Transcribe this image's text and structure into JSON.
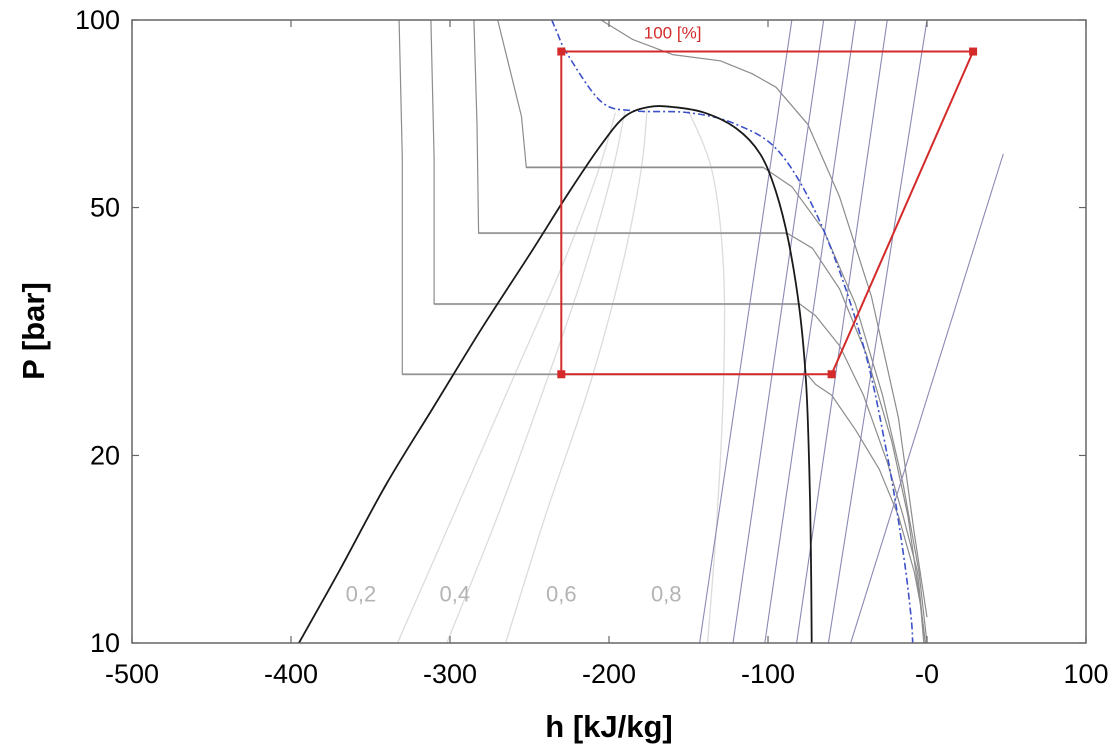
{
  "chart_data": {
    "type": "line",
    "title": "",
    "xlabel": "h [kJ/kg]",
    "ylabel": "P [bar]",
    "xlim": [
      -500,
      100
    ],
    "ylim": [
      10,
      100
    ],
    "yscale": "log",
    "grid": false,
    "x_ticks": [
      -500,
      -400,
      -300,
      -200,
      -100,
      0,
      100
    ],
    "x_tick_labels": [
      "-500",
      "-400",
      "-300",
      "-200",
      "-100",
      "-0",
      "100"
    ],
    "y_ticks": [
      10,
      20,
      50,
      100
    ],
    "y_tick_labels": [
      "10",
      "20",
      "50",
      "100"
    ],
    "colors": {
      "saturation_dome": "#1a1a1a",
      "isotherm": "#8c8c8c",
      "isobar": "#c8c8c8",
      "quality_line": "#dcdcdc",
      "isentrope": "#8a8ab4",
      "critical_isentrope": "#3c50c8",
      "cycle": "#d42a2a"
    },
    "saturation_dome": {
      "h": [
        -395,
        -370,
        -340,
        -310,
        -280,
        -250,
        -225,
        -205,
        -190,
        -175,
        -160,
        -140,
        -120,
        -105,
        -95,
        -87,
        -80,
        -76,
        -74,
        -73,
        -72.5
      ],
      "p": [
        10,
        13,
        18,
        24,
        32,
        42,
        53,
        63,
        70,
        72.5,
        72.5,
        71,
        67,
        61,
        53,
        44,
        34,
        26,
        19,
        14,
        10
      ]
    },
    "quality_lines": [
      {
        "label": "0,2",
        "h": [
          -333,
          -298,
          -262,
          -230,
          -207,
          -196
        ],
        "p": [
          10,
          16,
          26,
          40,
          57,
          71
        ]
      },
      {
        "label": "0,4",
        "h": [
          -302,
          -270,
          -240,
          -215,
          -198,
          -190
        ],
        "p": [
          10,
          16,
          26,
          40,
          57,
          71.5
        ]
      },
      {
        "label": "0,6",
        "h": [
          -265,
          -240,
          -212,
          -192,
          -180,
          -176
        ],
        "p": [
          10,
          16,
          26,
          40,
          57,
          72
        ]
      },
      {
        "label": "0,8",
        "h": [
          -138,
          -132,
          -128,
          -128,
          -135,
          -150
        ],
        "p": [
          10,
          16,
          26,
          40,
          57,
          71.5
        ]
      }
    ],
    "quality_label_y": 12,
    "isobars": [
      {
        "p": 27,
        "h": [
          -330,
          -75.5
        ]
      },
      {
        "p": 35,
        "h": [
          -310,
          -80
        ]
      },
      {
        "p": 45.5,
        "h": [
          -282,
          -88
        ]
      },
      {
        "p": 58,
        "h": [
          -252,
          -103
        ]
      }
    ],
    "isotherms": [
      {
        "h": [
          -332,
          -330,
          -330,
          -75.5,
          -70,
          -60,
          -45,
          -30,
          -18,
          -8,
          -4,
          -2
        ],
        "p": [
          100,
          60,
          27,
          27,
          26,
          25,
          22,
          19,
          16,
          13,
          11.5,
          10
        ]
      },
      {
        "h": [
          -312,
          -310,
          -310,
          -80,
          -70,
          -55,
          -40,
          -25,
          -15,
          -6,
          -3,
          -1
        ],
        "p": [
          100,
          60,
          35,
          35,
          33.5,
          30,
          25,
          19.5,
          16,
          13,
          11,
          10
        ]
      },
      {
        "h": [
          -285,
          -283,
          -282,
          -88,
          -72,
          -55,
          -38,
          -22,
          -12,
          -5,
          -1
        ],
        "p": [
          100,
          68,
          45.5,
          45.5,
          43,
          37,
          29,
          21,
          16,
          12,
          10
        ]
      },
      {
        "h": [
          -270,
          -255,
          -252,
          -103,
          -85,
          -65,
          -45,
          -28,
          -15,
          -5,
          0
        ],
        "p": [
          100,
          70,
          58,
          58,
          54,
          46,
          35,
          25,
          18,
          13,
          10
        ]
      },
      {
        "h": [
          -205,
          -185,
          -160,
          -130,
          -110,
          -95,
          -75,
          -55,
          -35,
          -18,
          -8,
          0
        ],
        "p": [
          100,
          93,
          88,
          86,
          82,
          78,
          68,
          52,
          36,
          23,
          15,
          11
        ]
      }
    ],
    "isentropes": [
      {
        "h": [
          -143,
          -85
        ],
        "p": [
          10,
          100
        ]
      },
      {
        "h": [
          -122,
          -65
        ],
        "p": [
          10,
          100
        ]
      },
      {
        "h": [
          -102,
          -45
        ],
        "p": [
          10,
          100
        ]
      },
      {
        "h": [
          -82,
          -25
        ],
        "p": [
          10,
          100
        ]
      },
      {
        "h": [
          -62,
          0
        ],
        "p": [
          10,
          100
        ]
      },
      {
        "h": [
          -48,
          48
        ],
        "p": [
          10,
          61
        ]
      }
    ],
    "critical_isentrope": {
      "h": [
        -236,
        -233,
        -226,
        -205,
        -185,
        -150,
        -120,
        -92,
        -65,
        -40,
        -25,
        -15,
        -10,
        -9
      ],
      "p": [
        100,
        96,
        88,
        74,
        71.5,
        71,
        68,
        61,
        46,
        30,
        20,
        14,
        11,
        10
      ]
    },
    "cycle": {
      "points": [
        {
          "h": -230,
          "p": 89
        },
        {
          "h": 29,
          "p": 89
        },
        {
          "h": -60,
          "p": 27
        },
        {
          "h": -230,
          "p": 27
        }
      ],
      "label": "100 [%]",
      "label_h": -160,
      "label_p": 95.5
    }
  }
}
